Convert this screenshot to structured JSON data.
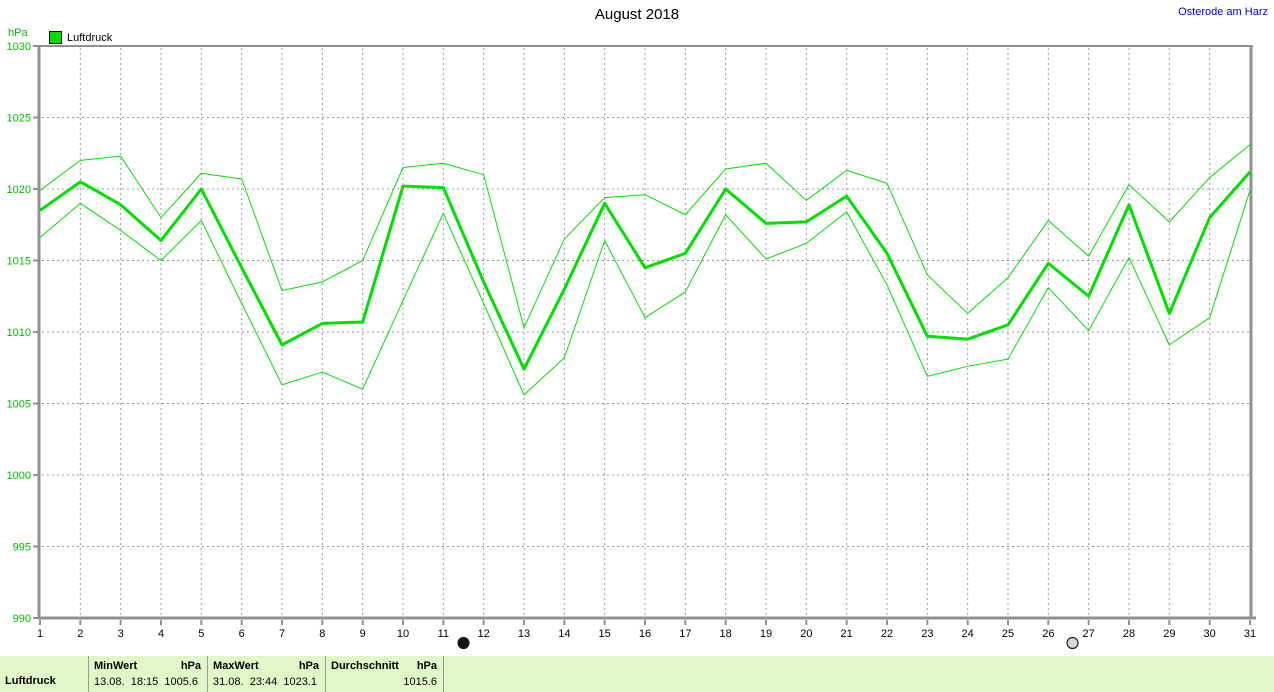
{
  "header": {
    "title": "August 2018",
    "station": "Osterode am Harz"
  },
  "chart": {
    "unit_label": "hPa",
    "legend_label": "Luftdruck"
  },
  "colors": {
    "line_green": "#00e000",
    "label_green": "#00be00",
    "link_blue": "#0000ee",
    "axis_gray": "#909090",
    "grid_gray": "#999999",
    "table_bg": "#e1f7c8",
    "text_black": "#000000",
    "new_moon_fill": "#111111",
    "full_moon_fill": "#d8d8d8"
  },
  "chart_data": {
    "type": "line",
    "title": "August 2018",
    "ylabel": "hPa",
    "xlabel": "",
    "grid": true,
    "legend_position": "top-left",
    "legend_label": "Luftdruck",
    "ylim": [
      990,
      1030
    ],
    "y_ticks": [
      1030,
      1025,
      1020,
      1015,
      1010,
      1005,
      1000,
      995,
      990
    ],
    "categories": [
      "1",
      "2",
      "3",
      "4",
      "5",
      "6",
      "7",
      "8",
      "9",
      "10",
      "11",
      "12",
      "13",
      "14",
      "15",
      "16",
      "17",
      "18",
      "19",
      "20",
      "21",
      "22",
      "23",
      "24",
      "25",
      "26",
      "27",
      "28",
      "29",
      "30",
      "31"
    ],
    "series": [
      {
        "name": "daily-max",
        "width": "thin",
        "values": [
          1019.9,
          1022.0,
          1022.3,
          1018.0,
          1021.1,
          1020.7,
          1012.9,
          1013.5,
          1015.0,
          1021.5,
          1021.8,
          1021.0,
          1010.3,
          1016.5,
          1019.4,
          1019.6,
          1018.2,
          1021.4,
          1021.8,
          1019.2,
          1021.3,
          1020.4,
          1014.0,
          1011.3,
          1013.8,
          1017.8,
          1015.3,
          1020.3,
          1017.7,
          1020.8,
          1023.1
        ]
      },
      {
        "name": "daily-mean",
        "width": "thick",
        "values": [
          1018.5,
          1020.5,
          1018.9,
          1016.4,
          1020.0,
          1014.5,
          1009.1,
          1010.6,
          1010.7,
          1020.2,
          1020.1,
          1013.5,
          1007.4,
          1013.0,
          1019.0,
          1014.5,
          1015.5,
          1020.0,
          1017.6,
          1017.7,
          1019.5,
          1015.5,
          1009.7,
          1009.5,
          1010.5,
          1014.8,
          1012.5,
          1018.9,
          1011.3,
          1018.0,
          1021.2
        ]
      },
      {
        "name": "daily-min",
        "width": "thin",
        "values": [
          1016.6,
          1019.0,
          1017.1,
          1015.0,
          1017.8,
          1012.0,
          1006.3,
          1007.2,
          1006.0,
          1012.2,
          1018.3,
          1012.0,
          1005.6,
          1008.2,
          1016.4,
          1011.0,
          1012.8,
          1018.2,
          1015.1,
          1016.2,
          1018.4,
          1013.3,
          1006.9,
          1007.6,
          1008.1,
          1013.1,
          1010.1,
          1015.2,
          1009.1,
          1011.0,
          1019.9
        ]
      }
    ],
    "annotations": [
      {
        "symbol": "new-moon",
        "day": 11.5
      },
      {
        "symbol": "full-moon",
        "day": 26.6
      }
    ]
  },
  "summary_table": {
    "row_label": "Luftdruck",
    "columns": [
      {
        "header": "MinWert",
        "unit": "hPa",
        "value": "13.08.  18:15  1005.6"
      },
      {
        "header": "MaxWert",
        "unit": "hPa",
        "value": "31.08.  23:44  1023.1"
      },
      {
        "header": "Durchschnitt",
        "unit": "hPa",
        "value": "1015.6"
      }
    ]
  }
}
